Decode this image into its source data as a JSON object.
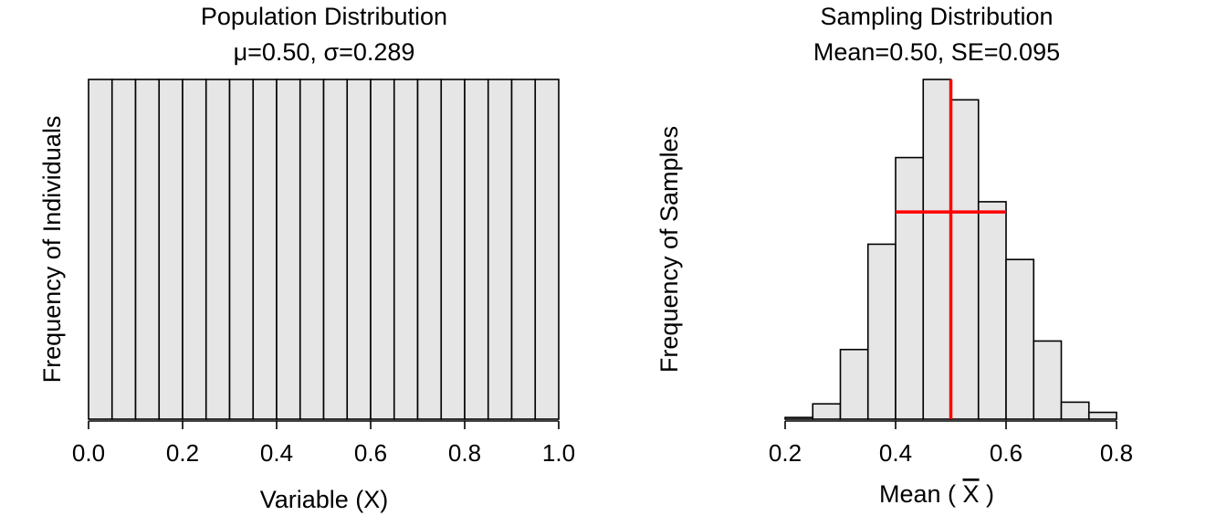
{
  "chart_data": [
    {
      "type": "bar",
      "title": "Population Distribution",
      "subtitle": "μ=0.50, σ=0.289",
      "xlabel": "Variable (X)",
      "ylabel": "Frequency of Individuals",
      "xlim": [
        0.0,
        1.0
      ],
      "xticks": [
        "0.0",
        "0.2",
        "0.4",
        "0.6",
        "0.8",
        "1.0"
      ],
      "bin_edges": [
        0.0,
        0.05,
        0.1,
        0.15,
        0.2,
        0.25,
        0.3,
        0.35,
        0.4,
        0.45,
        0.5,
        0.55,
        0.6,
        0.65,
        0.7,
        0.75,
        0.8,
        0.85,
        0.9,
        0.95,
        1.0
      ],
      "values": [
        1,
        1,
        1,
        1,
        1,
        1,
        1,
        1,
        1,
        1,
        1,
        1,
        1,
        1,
        1,
        1,
        1,
        1,
        1,
        1
      ],
      "ylim": [
        0,
        1
      ],
      "colors": {
        "bar_fill": "#e6e6e6",
        "bar_stroke": "#000000"
      }
    },
    {
      "type": "bar",
      "title": "Sampling Distribution",
      "subtitle": "Mean=0.50, SE=0.095",
      "xlabel": "Mean ( X )",
      "xlabel_parts": [
        "Mean ( ",
        "X",
        " )"
      ],
      "ylabel": "Frequency of Samples",
      "xlim": [
        0.2,
        0.8
      ],
      "xticks": [
        "0.2",
        "0.4",
        "0.6",
        "0.8"
      ],
      "bin_edges": [
        0.2,
        0.25,
        0.3,
        0.35,
        0.4,
        0.45,
        0.5,
        0.55,
        0.6,
        0.65,
        0.7,
        0.75,
        0.8
      ],
      "values": [
        0.5,
        4.5,
        20.5,
        51.5,
        77,
        100,
        94,
        64,
        47,
        23,
        5,
        2
      ],
      "ylim": [
        0,
        100
      ],
      "mean_line": {
        "x": 0.5
      },
      "se_line": {
        "x_start": 0.4,
        "x_end": 0.6,
        "y": 61
      },
      "colors": {
        "bar_fill": "#e6e6e6",
        "bar_stroke": "#000000",
        "ref_line": "#ff0000"
      }
    }
  ]
}
